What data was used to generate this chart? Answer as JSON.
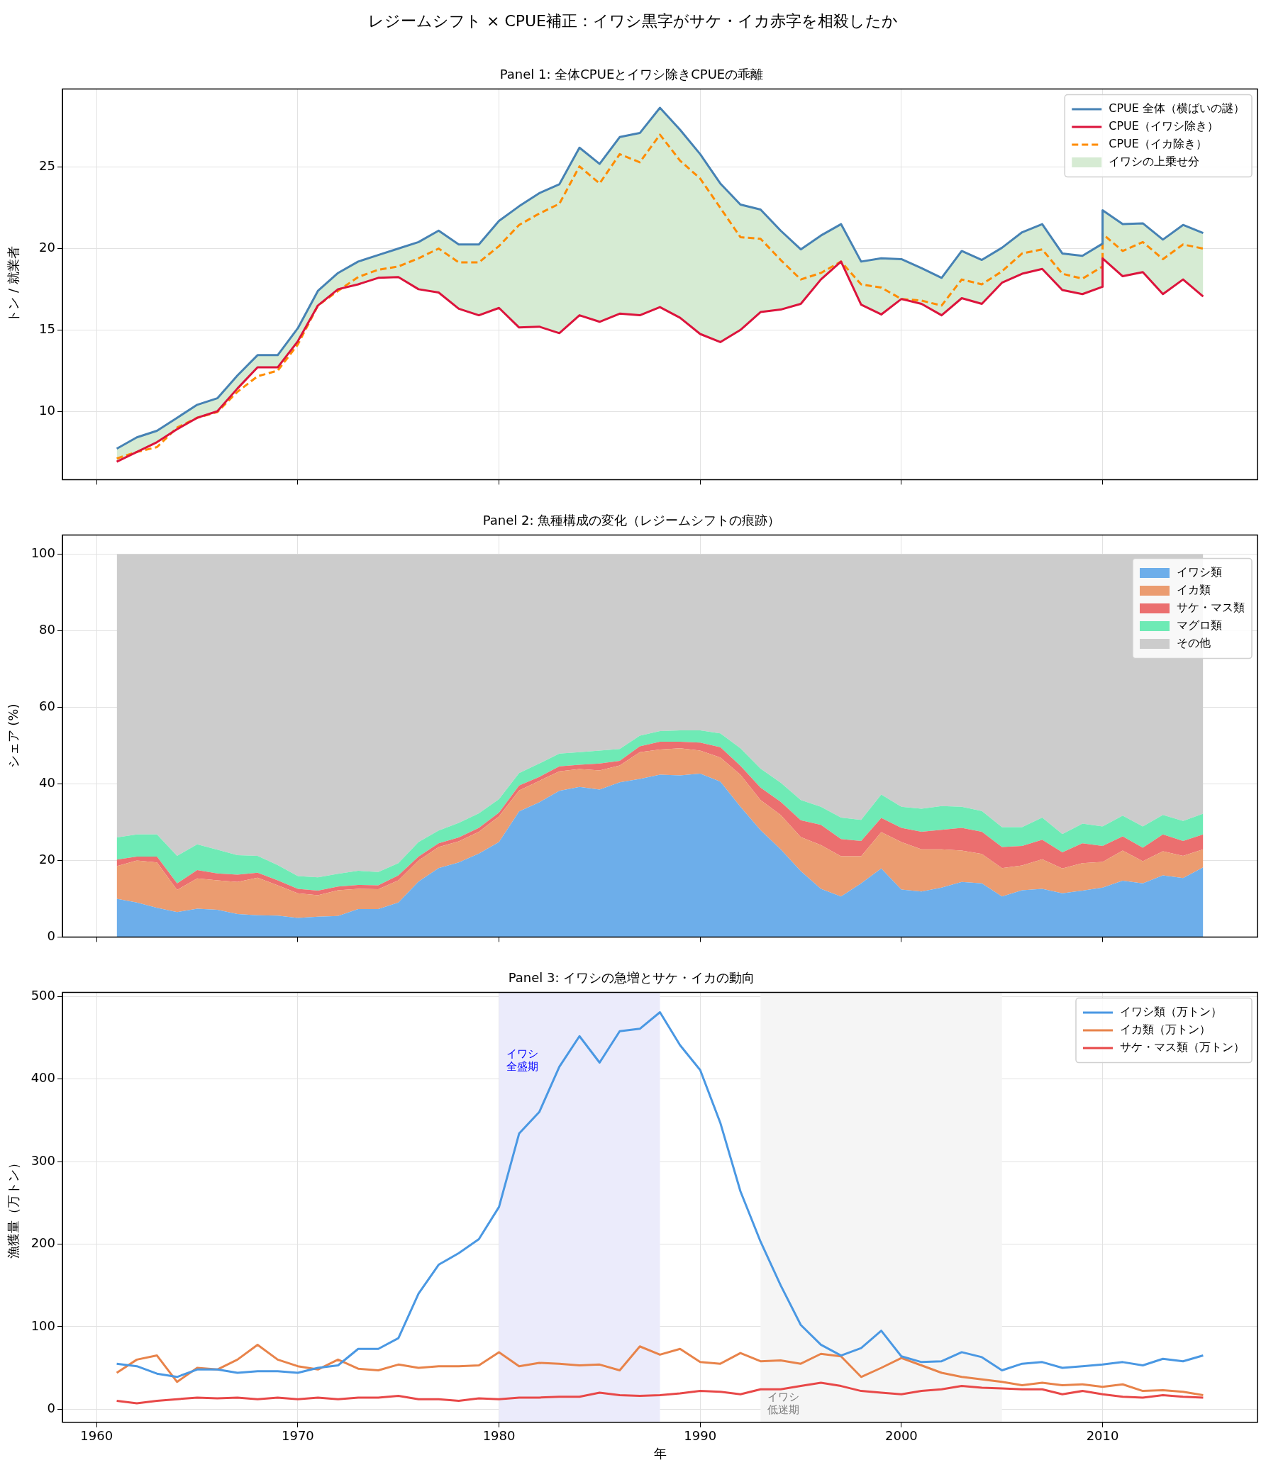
{
  "chart_data": [
    {
      "type": "line",
      "title": "レジームシフト × CPUE補正：イワシ黒字がサケ・イカ赤字を相殺したか",
      "subtitle": "Panel 1: 全体CPUEとイワシ除きCPUEの乖離",
      "ylabel": "トン / 就業者",
      "x": [
        1961,
        1962,
        1963,
        1964,
        1965,
        1966,
        1967,
        1968,
        1969,
        1970,
        1971,
        1972,
        1973,
        1974,
        1975,
        1976,
        1977,
        1978,
        1979,
        1980,
        1981,
        1982,
        1983,
        1984,
        1985,
        1986,
        1987,
        1988,
        1989,
        1990,
        1991,
        1992,
        1993,
        1994,
        1995,
        1996,
        1997,
        1998,
        1999,
        2000,
        2001,
        2002,
        2003,
        2004,
        2005,
        2006,
        2007,
        2008,
        2009,
        2010,
        2010,
        2011,
        2012,
        2013,
        2014,
        2015
      ],
      "series": [
        {
          "name": "CPUE 全体（横ばいの謎）",
          "type": "line",
          "color": "#4682b4",
          "values": [
            7.7,
            8.4,
            8.8,
            9.6,
            10.4,
            10.8,
            12.2,
            13.45,
            13.45,
            15.1,
            17.4,
            18.5,
            19.2,
            19.6,
            20.0,
            20.4,
            21.1,
            20.25,
            20.25,
            21.7,
            22.6,
            23.4,
            23.95,
            26.2,
            25.2,
            26.85,
            27.1,
            28.65,
            27.3,
            25.8,
            24.0,
            22.7,
            22.4,
            21.1,
            19.95,
            20.8,
            21.5,
            19.2,
            19.4,
            19.35,
            18.8,
            18.2,
            19.85,
            19.3,
            20.05,
            21.0,
            21.5,
            19.7,
            19.55,
            20.3,
            22.35,
            21.5,
            21.55,
            20.55,
            21.45,
            20.95
          ]
        },
        {
          "name": "CPUE（イワシ除き）",
          "type": "line",
          "color": "#dc143c",
          "values": [
            6.9,
            7.5,
            8.1,
            8.9,
            9.6,
            10.0,
            11.4,
            12.7,
            12.7,
            14.3,
            16.5,
            17.5,
            17.8,
            18.2,
            18.25,
            17.5,
            17.3,
            16.3,
            15.9,
            16.35,
            15.15,
            15.2,
            14.8,
            15.9,
            15.5,
            16.0,
            15.9,
            16.4,
            15.75,
            14.75,
            14.25,
            15.0,
            16.1,
            16.25,
            16.6,
            18.1,
            19.2,
            16.55,
            15.95,
            16.9,
            16.6,
            15.9,
            16.95,
            16.6,
            17.9,
            18.45,
            18.75,
            17.45,
            17.2,
            17.65,
            19.4,
            18.3,
            18.55,
            17.2,
            18.1,
            17.05
          ]
        },
        {
          "name": "CPUE（イカ除き）",
          "type": "line",
          "color": "#ff8c00",
          "line_style": "dashed",
          "values": [
            7.1,
            7.5,
            7.8,
            9.0,
            9.6,
            9.95,
            11.2,
            12.15,
            12.5,
            14.1,
            16.5,
            17.4,
            18.25,
            18.7,
            18.9,
            19.4,
            20.0,
            19.15,
            19.15,
            20.15,
            21.45,
            22.15,
            22.75,
            25.05,
            24.0,
            25.8,
            25.3,
            27.0,
            25.4,
            24.3,
            22.5,
            20.7,
            20.6,
            19.3,
            18.1,
            18.5,
            19.2,
            17.8,
            17.6,
            16.9,
            16.8,
            16.5,
            18.1,
            17.8,
            18.6,
            19.7,
            19.95,
            18.45,
            18.15,
            18.9,
            20.9,
            19.85,
            20.4,
            19.35,
            20.25,
            20.0
          ]
        },
        {
          "name": "イワシの上乗せ分",
          "type": "area",
          "color": "#d6ebd3",
          "values": [
            null,
            null,
            null,
            null,
            null,
            null,
            null,
            null,
            null,
            null,
            null,
            null,
            null,
            null,
            null,
            null,
            null,
            null,
            null,
            null,
            null,
            null,
            null,
            null,
            null,
            null,
            null,
            null,
            null,
            null,
            null,
            null,
            null,
            null,
            null,
            null,
            null,
            null,
            null,
            null,
            null,
            null,
            null,
            null,
            null,
            null,
            null,
            null,
            null,
            null,
            null,
            null,
            null,
            null,
            null,
            null
          ],
          "upper": [
            7.7,
            8.4,
            8.8,
            9.6,
            10.4,
            10.8,
            12.2,
            13.45,
            13.45,
            15.1,
            17.4,
            18.5,
            19.2,
            19.6,
            20.0,
            20.4,
            21.1,
            20.25,
            20.25,
            21.7,
            22.6,
            23.4,
            23.95,
            26.2,
            25.2,
            26.85,
            27.1,
            28.65,
            27.3,
            25.8,
            24.0,
            22.7,
            22.4,
            21.1,
            19.95,
            20.8,
            21.5,
            19.2,
            19.4,
            19.35,
            18.8,
            18.2,
            19.85,
            19.3,
            20.05,
            21.0,
            21.5,
            19.7,
            19.55,
            20.3,
            22.35,
            21.5,
            21.55,
            20.55,
            21.45,
            20.95
          ],
          "lower": [
            6.9,
            7.5,
            8.1,
            8.9,
            9.6,
            10.0,
            11.4,
            12.7,
            12.7,
            14.3,
            16.5,
            17.5,
            17.8,
            18.2,
            18.25,
            17.5,
            17.3,
            16.3,
            15.9,
            16.35,
            15.15,
            15.2,
            14.8,
            15.9,
            15.5,
            16.0,
            15.9,
            16.4,
            15.75,
            14.75,
            14.25,
            15.0,
            16.1,
            16.25,
            16.6,
            18.1,
            19.2,
            16.55,
            15.95,
            16.9,
            16.6,
            15.9,
            16.95,
            16.6,
            17.9,
            18.45,
            18.75,
            17.45,
            17.2,
            17.65,
            19.4,
            18.3,
            18.55,
            17.2,
            18.1,
            17.05
          ]
        }
      ],
      "xlim": [
        1958.3,
        2017.7
      ],
      "xticks": [
        1960,
        1970,
        1980,
        1990,
        2000,
        2010
      ],
      "ylim": [
        5.8,
        29.8
      ],
      "yticks": [
        10,
        15,
        20,
        25
      ],
      "tick_labels": "y",
      "grid": true,
      "legend": "top right"
    },
    {
      "type": "area",
      "stacked": true,
      "title": "Panel 2: 魚種構成の変化（レジームシフトの痕跡）",
      "ylabel": "シェア (%)",
      "x": [
        1961,
        1962,
        1963,
        1964,
        1965,
        1966,
        1967,
        1968,
        1969,
        1970,
        1971,
        1972,
        1973,
        1974,
        1975,
        1976,
        1977,
        1978,
        1979,
        1980,
        1981,
        1982,
        1983,
        1984,
        1985,
        1986,
        1987,
        1988,
        1989,
        1990,
        1991,
        1992,
        1993,
        1994,
        1995,
        1996,
        1997,
        1998,
        1999,
        2000,
        2001,
        2002,
        2003,
        2004,
        2005,
        2006,
        2007,
        2008,
        2009,
        2010,
        2011,
        2012,
        2013,
        2014,
        2015
      ],
      "series": [
        {
          "name": "イワシ類",
          "color": "#6daeea",
          "values": [
            10.0,
            9.0,
            7.6,
            6.5,
            7.4,
            7.1,
            6.0,
            5.7,
            5.6,
            5.0,
            5.3,
            5.5,
            7.3,
            7.3,
            9.0,
            14.5,
            18.0,
            19.5,
            21.8,
            24.8,
            32.8,
            35.2,
            38.2,
            39.2,
            38.5,
            40.4,
            41.3,
            42.4,
            42.2,
            42.7,
            40.6,
            34.0,
            27.9,
            22.9,
            17.2,
            12.6,
            10.6,
            14.0,
            17.9,
            12.4,
            11.9,
            12.9,
            14.4,
            14.0,
            10.6,
            12.2,
            12.6,
            11.4,
            12.1,
            12.9,
            14.7,
            14.0,
            16.1,
            15.4,
            18.2
          ]
        },
        {
          "name": "イカ類",
          "color": "#eb9c70",
          "values": [
            8.5,
            11.0,
            11.9,
            5.8,
            7.9,
            7.7,
            8.4,
            9.8,
            7.9,
            6.4,
            5.6,
            6.7,
            5.3,
            5.2,
            5.8,
            5.5,
            5.5,
            5.5,
            5.7,
            6.7,
            5.5,
            5.6,
            5.1,
            4.7,
            5.0,
            4.4,
            7.0,
            6.6,
            7.1,
            6.0,
            6.3,
            8.4,
            7.9,
            9.0,
            8.9,
            11.4,
            10.5,
            7.1,
            9.5,
            12.4,
            11.0,
            10.0,
            8.2,
            7.7,
            7.4,
            6.5,
            7.7,
            6.5,
            7.2,
            6.7,
            7.9,
            5.8,
            6.3,
            5.8,
            4.7
          ]
        },
        {
          "name": "サケ・マス類",
          "color": "#eb6f6f",
          "values": [
            1.7,
            1.0,
            1.5,
            1.7,
            2.2,
            1.8,
            1.9,
            1.3,
            1.3,
            1.2,
            1.2,
            1.0,
            1.0,
            1.0,
            1.3,
            1.0,
            1.0,
            1.0,
            1.0,
            1.0,
            1.3,
            1.0,
            1.3,
            1.1,
            1.8,
            1.2,
            1.5,
            2.0,
            1.7,
            2.1,
            2.7,
            2.3,
            3.2,
            3.4,
            4.4,
            5.3,
            4.5,
            4.0,
            3.7,
            3.7,
            4.6,
            5.1,
            5.9,
            5.8,
            5.5,
            5.1,
            5.1,
            4.2,
            5.2,
            4.2,
            3.7,
            3.5,
            4.4,
            3.9,
            3.9
          ]
        },
        {
          "name": "マグロ類",
          "color": "#6eeab5",
          "values": [
            5.8,
            5.8,
            5.8,
            7.2,
            6.7,
            6.2,
            5.1,
            4.4,
            4.0,
            3.3,
            3.5,
            3.3,
            3.7,
            3.5,
            3.2,
            3.8,
            3.3,
            3.8,
            3.8,
            3.5,
            3.2,
            3.5,
            3.3,
            3.3,
            3.4,
            3.1,
            2.8,
            2.8,
            3.0,
            3.2,
            3.6,
            4.6,
            5.0,
            5.0,
            5.3,
            4.7,
            5.6,
            5.5,
            6.1,
            5.5,
            6.0,
            6.2,
            5.5,
            5.4,
            5.2,
            4.9,
            5.8,
            4.8,
            5.1,
            5.1,
            5.4,
            5.6,
            5.1,
            5.2,
            5.4
          ]
        },
        {
          "name": "その他",
          "color": "#cccccc",
          "values": [
            74.0,
            73.2,
            73.2,
            78.8,
            75.8,
            77.2,
            78.6,
            78.8,
            81.2,
            84.1,
            84.4,
            83.5,
            82.7,
            83.0,
            80.7,
            75.2,
            72.2,
            70.2,
            67.7,
            64.0,
            57.2,
            54.7,
            52.1,
            51.7,
            51.3,
            50.9,
            47.4,
            46.2,
            46.0,
            46.0,
            46.8,
            50.7,
            56.0,
            59.7,
            64.2,
            66.0,
            68.8,
            69.4,
            62.8,
            66.0,
            66.5,
            65.8,
            66.0,
            67.1,
            71.3,
            71.3,
            68.8,
            73.1,
            70.4,
            71.1,
            68.3,
            71.1,
            68.1,
            69.7,
            67.8
          ]
        }
      ],
      "xlim": [
        1958.3,
        2017.7
      ],
      "xticks": [
        1960,
        1970,
        1980,
        1990,
        2000,
        2010
      ],
      "ylim": [
        0,
        105
      ],
      "yticks": [
        0,
        20,
        40,
        60,
        80,
        100
      ],
      "tick_labels": "y",
      "grid": true,
      "legend": "top right"
    },
    {
      "type": "line",
      "title": "Panel 3: イワシの急増とサケ・イカの動向",
      "xlabel": "年",
      "ylabel": "漁獲量（万トン）",
      "x": [
        1961,
        1962,
        1963,
        1964,
        1965,
        1966,
        1967,
        1968,
        1969,
        1970,
        1971,
        1972,
        1973,
        1974,
        1975,
        1976,
        1977,
        1978,
        1979,
        1980,
        1981,
        1982,
        1983,
        1984,
        1985,
        1986,
        1987,
        1988,
        1989,
        1990,
        1991,
        1992,
        1993,
        1994,
        1995,
        1996,
        1997,
        1998,
        1999,
        2000,
        2001,
        2002,
        2003,
        2004,
        2005,
        2006,
        2007,
        2008,
        2009,
        2010,
        2011,
        2012,
        2013,
        2014,
        2015
      ],
      "series": [
        {
          "name": "イワシ類（万トン）",
          "color": "#4a98e3",
          "values": [
            55,
            52,
            43,
            39,
            48,
            48,
            44,
            46,
            46,
            44,
            50,
            53,
            73,
            73,
            86,
            140,
            175,
            189,
            206,
            245,
            334,
            360,
            415,
            452,
            420,
            458,
            461,
            481,
            441,
            411,
            347,
            264,
            203,
            150,
            102,
            78,
            65,
            74,
            95,
            64,
            57,
            58,
            69,
            63,
            47,
            55,
            57,
            50,
            52,
            54,
            57,
            53,
            61,
            58,
            65
          ]
        },
        {
          "name": "イカ類（万トン）",
          "color": "#e8834a",
          "values": [
            44,
            60,
            65,
            33,
            50,
            48,
            60,
            78,
            60,
            52,
            48,
            60,
            49,
            47,
            54,
            50,
            52,
            52,
            53,
            69,
            52,
            56,
            55,
            53,
            54,
            47,
            76,
            66,
            73,
            57,
            55,
            68,
            58,
            59,
            55,
            67,
            64,
            39,
            50,
            62,
            53,
            44,
            39,
            36,
            33,
            29,
            32,
            29,
            30,
            27,
            30,
            22,
            23,
            21,
            17
          ]
        },
        {
          "name": "サケ・マス類（万トン）",
          "color": "#e84848",
          "values": [
            10,
            7,
            10,
            12,
            14,
            13,
            14,
            12,
            14,
            12,
            14,
            12,
            14,
            14,
            16,
            12,
            12,
            10,
            13,
            12,
            14,
            14,
            15,
            15,
            20,
            17,
            16,
            17,
            19,
            22,
            21,
            18,
            24,
            24,
            28,
            32,
            28,
            22,
            20,
            18,
            22,
            24,
            28,
            26,
            25,
            24,
            24,
            18,
            22,
            18,
            15,
            14,
            17,
            15,
            14
          ]
        }
      ],
      "bands": [
        {
          "axis": "x",
          "from": 1980,
          "to": 1988,
          "color": "#ebebfb",
          "label": "イワシ全盛期"
        },
        {
          "axis": "x",
          "from": 1993,
          "to": 2005,
          "color": "#f5f5f5",
          "label": "イワシ低迷期"
        }
      ],
      "xlim": [
        1958.3,
        2017.7
      ],
      "xticks": [
        1960,
        1970,
        1980,
        1990,
        2000,
        2010
      ],
      "ylim": [
        -16,
        505
      ],
      "yticks": [
        0,
        100,
        200,
        300,
        400,
        500
      ],
      "grid": true,
      "legend": "top right"
    }
  ]
}
